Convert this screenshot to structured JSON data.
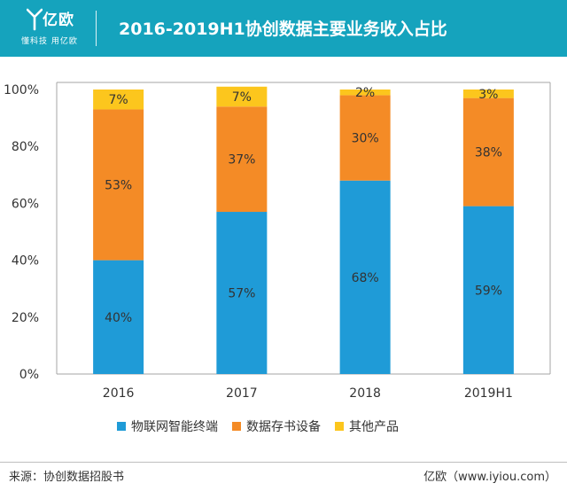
{
  "header": {
    "logo_name": "亿欧",
    "logo_tagline": "懂科技 用亿欧",
    "title": "2016-2019H1协创数据主要业务收入占比"
  },
  "chart_data": {
    "type": "bar",
    "stacked": true,
    "title": "2016-2019H1协创数据主要业务收入占比",
    "categories": [
      "2016",
      "2017",
      "2018",
      "2019H1"
    ],
    "series": [
      {
        "name": "物联网智能终端",
        "values": [
          40,
          57,
          68,
          59
        ],
        "labels": [
          "40%",
          "57%",
          "68%",
          "59%"
        ],
        "color": "#1f9bd7"
      },
      {
        "name": "数据存书设备",
        "values": [
          53,
          37,
          30,
          38
        ],
        "labels": [
          "53%",
          "37%",
          "30%",
          "38%"
        ],
        "color": "#f48b26"
      },
      {
        "name": "其他产品",
        "values": [
          7,
          7,
          2,
          3
        ],
        "labels": [
          "7%",
          "7%",
          "2%",
          "3%"
        ],
        "color": "#fcc61d"
      }
    ],
    "ylim": [
      0,
      100
    ],
    "yticks": [
      "0%",
      "20%",
      "40%",
      "60%",
      "80%",
      "100%"
    ],
    "xlabel": "",
    "ylabel": "",
    "legend": "bottom",
    "grid": false
  },
  "footer": {
    "source": "来源：协创数据招股书",
    "brand": "亿欧（www.iyiou.com）"
  }
}
